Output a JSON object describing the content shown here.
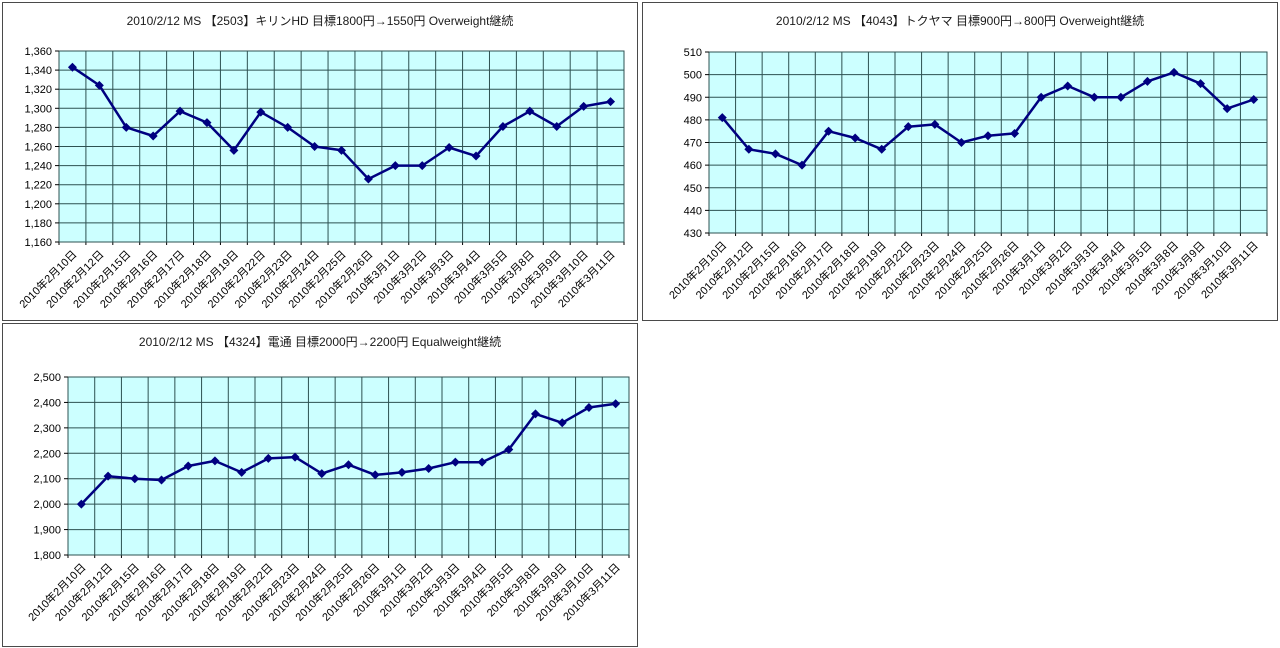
{
  "chart_data": [
    {
      "type": "line",
      "title": "2010/2/12 MS 【2503】キリンHD 目標1800円→1550円 Overweight継続",
      "categories": [
        "2010年2月10日",
        "2010年2月12日",
        "2010年2月15日",
        "2010年2月16日",
        "2010年2月17日",
        "2010年2月18日",
        "2010年2月19日",
        "2010年2月22日",
        "2010年2月23日",
        "2010年2月24日",
        "2010年2月25日",
        "2010年2月26日",
        "2010年3月1日",
        "2010年3月2日",
        "2010年3月3日",
        "2010年3月4日",
        "2010年3月5日",
        "2010年3月8日",
        "2010年3月9日",
        "2010年3月10日",
        "2010年3月11日"
      ],
      "values": [
        1343,
        1324,
        1280,
        1271,
        1297,
        1285,
        1256,
        1296,
        1280,
        1260,
        1256,
        1226,
        1240,
        1240,
        1259,
        1250,
        1281,
        1297,
        1281,
        1302,
        1307
      ],
      "ylim": [
        1160,
        1360
      ],
      "ytick_step": 20,
      "ytick_labels": [
        "1,160",
        "1,180",
        "1,200",
        "1,220",
        "1,240",
        "1,260",
        "1,280",
        "1,300",
        "1,320",
        "1,340",
        "1,360"
      ],
      "grid": true,
      "legend": "none",
      "plot_bg": "#ccffff",
      "grid_color": "#2d5151",
      "line_color": "#000080",
      "marker": "diamond"
    },
    {
      "type": "line",
      "title": "2010/2/12 MS 【4043】トクヤマ 目標900円→800円 Overweight継続",
      "categories": [
        "2010年2月10日",
        "2010年2月12日",
        "2010年2月15日",
        "2010年2月16日",
        "2010年2月17日",
        "2010年2月18日",
        "2010年2月19日",
        "2010年2月22日",
        "2010年2月23日",
        "2010年2月24日",
        "2010年2月25日",
        "2010年2月26日",
        "2010年3月1日",
        "2010年3月2日",
        "2010年3月3日",
        "2010年3月4日",
        "2010年3月5日",
        "2010年3月8日",
        "2010年3月9日",
        "2010年3月10日",
        "2010年3月11日"
      ],
      "values": [
        481,
        467,
        465,
        460,
        475,
        472,
        467,
        477,
        478,
        470,
        473,
        474,
        490,
        495,
        490,
        490,
        497,
        501,
        496,
        485,
        489
      ],
      "ylim": [
        430,
        510
      ],
      "ytick_step": 10,
      "ytick_labels": [
        "430",
        "440",
        "450",
        "460",
        "470",
        "480",
        "490",
        "500",
        "510"
      ],
      "grid": true,
      "legend": "none",
      "plot_bg": "#ccffff",
      "grid_color": "#2d5151",
      "line_color": "#000080",
      "marker": "diamond"
    },
    {
      "type": "line",
      "title": "2010/2/12 MS 【4324】電通 目標2000円→2200円 Equalweight継続",
      "categories": [
        "2010年2月10日",
        "2010年2月12日",
        "2010年2月15日",
        "2010年2月16日",
        "2010年2月17日",
        "2010年2月18日",
        "2010年2月19日",
        "2010年2月22日",
        "2010年2月23日",
        "2010年2月24日",
        "2010年2月25日",
        "2010年2月26日",
        "2010年3月1日",
        "2010年3月2日",
        "2010年3月3日",
        "2010年3月4日",
        "2010年3月5日",
        "2010年3月8日",
        "2010年3月9日",
        "2010年3月10日",
        "2010年3月11日"
      ],
      "values": [
        2000,
        2110,
        2100,
        2095,
        2150,
        2170,
        2125,
        2180,
        2185,
        2120,
        2155,
        2115,
        2125,
        2140,
        2165,
        2165,
        2215,
        2355,
        2320,
        2380,
        2395
      ],
      "ylim": [
        1800,
        2500
      ],
      "ytick_step": 100,
      "ytick_labels": [
        "1,800",
        "1,900",
        "2,000",
        "2,100",
        "2,200",
        "2,300",
        "2,400",
        "2,500"
      ],
      "grid": true,
      "legend": "none",
      "plot_bg": "#ccffff",
      "grid_color": "#2d5151",
      "line_color": "#000080",
      "marker": "diamond"
    }
  ]
}
